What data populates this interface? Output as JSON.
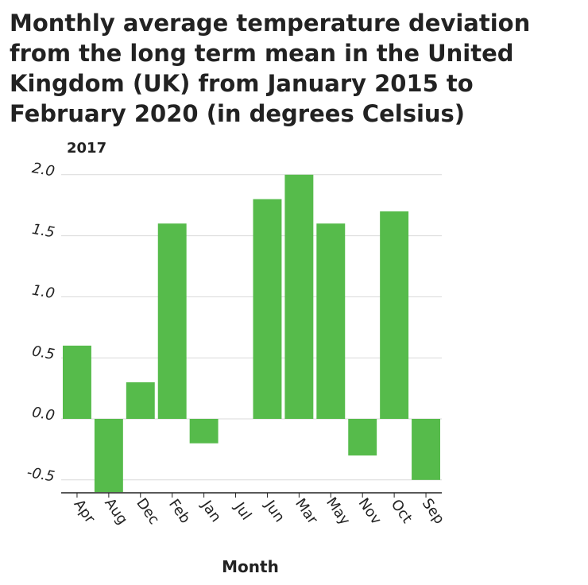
{
  "chart_data": {
    "type": "bar",
    "title": "Monthly average temperature deviation from the long term mean in the United Kingdom (UK) from January 2015 to February 2020 (in degrees Celsius)",
    "panel_label": "2017",
    "xlabel": "Month",
    "ylabel": "",
    "categories": [
      "Apr",
      "Aug",
      "Dec",
      "Feb",
      "Jan",
      "Jul",
      "Jun",
      "Mar",
      "May",
      "Nov",
      "Oct",
      "Sep"
    ],
    "values": [
      0.6,
      -0.6,
      0.3,
      1.6,
      -0.2,
      0.0,
      1.8,
      2.0,
      1.6,
      -0.3,
      1.7,
      -0.5
    ],
    "yticks": [
      "-0.5",
      "0.0",
      "0.5",
      "1.0",
      "1.5",
      "2.0"
    ],
    "ylim": [
      -0.6,
      2.0
    ],
    "grid": true,
    "colors": {
      "bar": "#56bb4b",
      "grid": "#d9d9d9",
      "axis": "#222222"
    }
  }
}
